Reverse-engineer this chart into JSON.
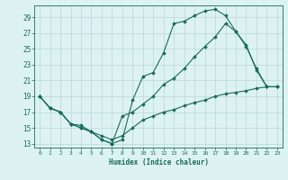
{
  "title": "",
  "xlabel": "Humidex (Indice chaleur)",
  "bg_color": "#ddf2f2",
  "grid_color": "#b8d8d8",
  "line_color": "#1a6b5a",
  "xlim": [
    -0.5,
    23.5
  ],
  "ylim": [
    12.5,
    30.5
  ],
  "yticks": [
    13,
    15,
    17,
    19,
    21,
    23,
    25,
    27,
    29
  ],
  "xticks": [
    0,
    1,
    2,
    3,
    4,
    5,
    6,
    7,
    8,
    9,
    10,
    11,
    12,
    13,
    14,
    15,
    16,
    17,
    18,
    19,
    20,
    21,
    22,
    23
  ],
  "line1_x": [
    0,
    1,
    2,
    3,
    4,
    5,
    6,
    7,
    8,
    9,
    10,
    11,
    12,
    13,
    14,
    15,
    16,
    17,
    18,
    19,
    20,
    21,
    22,
    23
  ],
  "line1_y": [
    19,
    17.5,
    17,
    15.5,
    15,
    14.5,
    13.5,
    13,
    13.5,
    18.5,
    21.5,
    22,
    24.5,
    28.2,
    28.5,
    29.2,
    29.8,
    30,
    29.2,
    27.2,
    25.5,
    22.3,
    20.2,
    20.2
  ],
  "line2_x": [
    0,
    1,
    2,
    3,
    4,
    5,
    6,
    7,
    8,
    9,
    10,
    11,
    12,
    13,
    14,
    15,
    16,
    17,
    18,
    19,
    20,
    21,
    22,
    23
  ],
  "line2_y": [
    19,
    17.5,
    17,
    15.5,
    15,
    14.5,
    13.5,
    13,
    16.5,
    17,
    18,
    19,
    20.5,
    21.3,
    22.5,
    24,
    25.3,
    26.5,
    28.2,
    27.2,
    25.3,
    22.5,
    20.2,
    20.2
  ],
  "line3_x": [
    0,
    1,
    2,
    3,
    4,
    5,
    6,
    7,
    8,
    9,
    10,
    11,
    12,
    13,
    14,
    15,
    16,
    17,
    18,
    19,
    20,
    21,
    22,
    23
  ],
  "line3_y": [
    19,
    17.5,
    17,
    15.5,
    15.3,
    14.5,
    14,
    13.5,
    14,
    15,
    16,
    16.5,
    17,
    17.3,
    17.8,
    18.2,
    18.5,
    19,
    19.3,
    19.5,
    19.7,
    20,
    20.2,
    20.2
  ]
}
